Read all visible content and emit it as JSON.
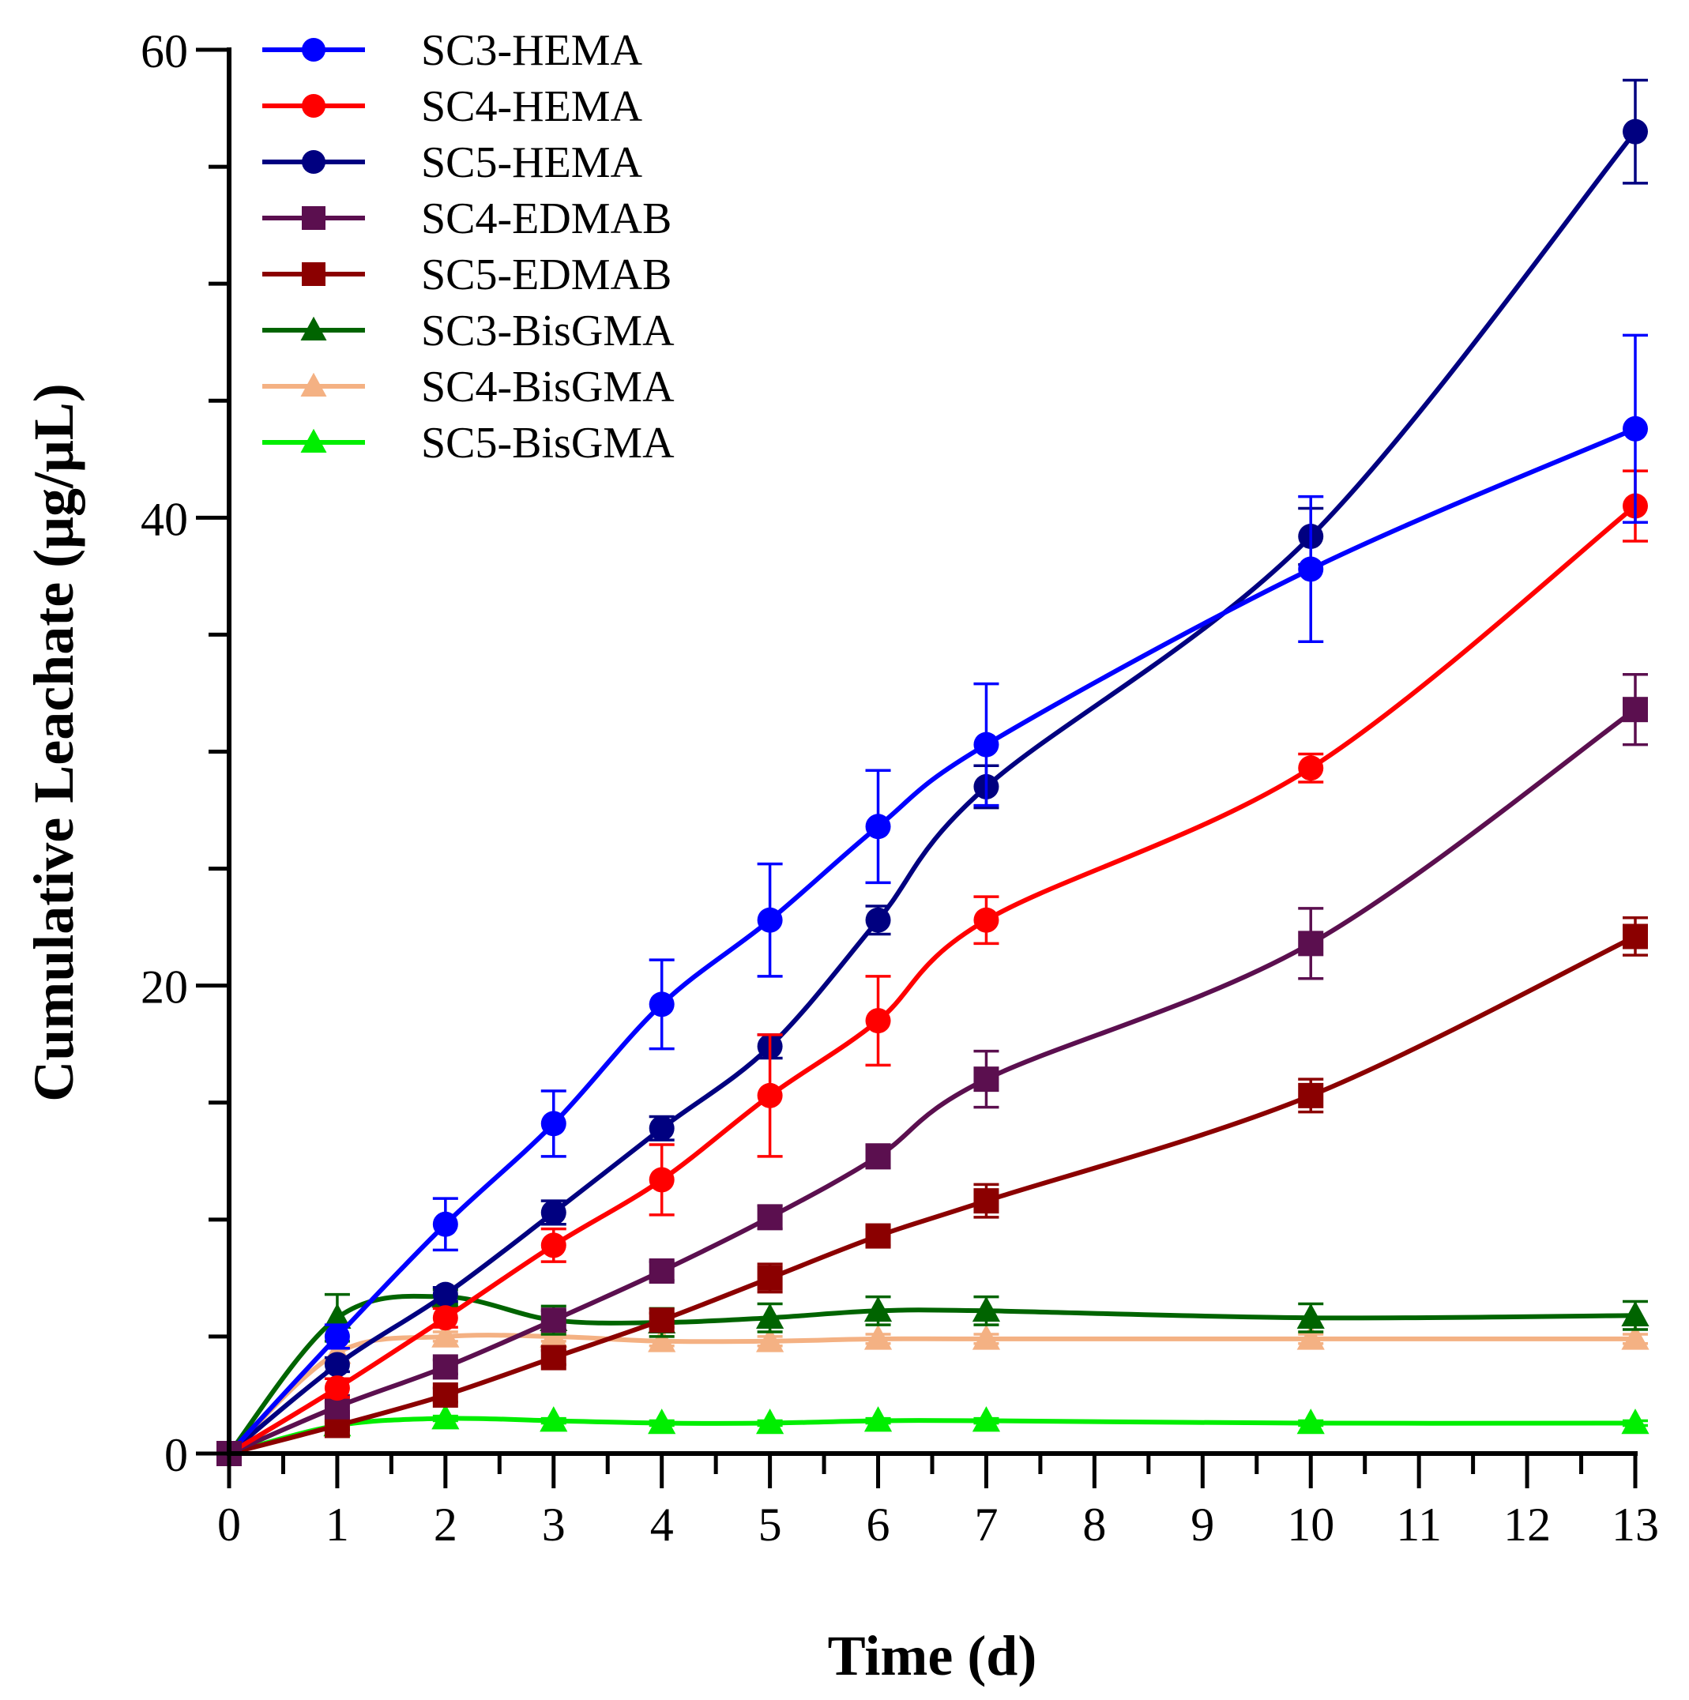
{
  "chart_data": {
    "type": "line",
    "title": "",
    "xlabel": "Time (d)",
    "ylabel": "Cumulative Leachate (μg/μL)",
    "xlim": [
      0,
      13
    ],
    "ylim": [
      0,
      60
    ],
    "x": [
      0,
      1,
      2,
      3,
      4,
      5,
      6,
      7,
      10,
      13
    ],
    "x_ticks": [
      0,
      1,
      2,
      3,
      4,
      5,
      6,
      7,
      8,
      9,
      10,
      11,
      12,
      13
    ],
    "y_ticks": [
      0,
      20,
      40,
      60
    ],
    "grid": false,
    "legend_position": "top-left",
    "series": [
      {
        "name": "SC3-HEMA",
        "color": "#0000ff",
        "marker": "circle",
        "values": [
          0,
          5.0,
          9.8,
          14.1,
          19.2,
          22.8,
          26.8,
          30.3,
          37.8,
          43.8
        ],
        "errors": [
          0,
          0.5,
          1.1,
          1.4,
          1.9,
          2.4,
          2.4,
          2.6,
          3.1,
          4.0
        ]
      },
      {
        "name": "SC4-HEMA",
        "color": "#ff0000",
        "marker": "circle",
        "values": [
          0,
          2.8,
          5.8,
          8.9,
          11.7,
          15.3,
          18.5,
          22.8,
          29.3,
          40.5
        ],
        "errors": [
          0,
          0.4,
          0.4,
          0.7,
          1.5,
          2.6,
          1.9,
          1.0,
          0.6,
          1.5
        ]
      },
      {
        "name": "SC5-HEMA",
        "color": "#000080",
        "marker": "circle",
        "values": [
          0,
          3.8,
          6.8,
          10.3,
          13.9,
          17.4,
          22.8,
          28.5,
          39.2,
          56.5
        ],
        "errors": [
          0,
          0.3,
          0.3,
          0.5,
          0.5,
          0.5,
          0.6,
          0.9,
          1.2,
          2.2
        ]
      },
      {
        "name": "SC4-EDMAB",
        "color": "#5b0f4f",
        "marker": "square",
        "values": [
          0,
          2.0,
          3.7,
          5.7,
          7.8,
          10.1,
          12.7,
          16.0,
          21.8,
          31.8
        ],
        "errors": [
          0,
          0.2,
          0.3,
          0.4,
          0.4,
          0.5,
          0.5,
          1.2,
          1.5,
          1.5
        ]
      },
      {
        "name": "SC5-EDMAB",
        "color": "#8b0000",
        "marker": "square",
        "values": [
          0,
          1.2,
          2.5,
          4.1,
          5.7,
          7.5,
          9.3,
          10.8,
          15.3,
          22.1
        ],
        "errors": [
          0,
          0.2,
          0.3,
          0.3,
          0.3,
          0.6,
          0.4,
          0.7,
          0.7,
          0.8
        ]
      },
      {
        "name": "SC3-BisGMA",
        "color": "#006400",
        "marker": "triangle",
        "values": [
          0,
          5.8,
          6.7,
          5.7,
          5.6,
          5.8,
          6.1,
          6.1,
          5.8,
          5.9
        ],
        "errors": [
          0,
          1.0,
          0.3,
          0.6,
          0.6,
          0.6,
          0.6,
          0.6,
          0.6,
          0.6
        ]
      },
      {
        "name": "SC4-BisGMA",
        "color": "#f4b183",
        "marker": "triangle",
        "values": [
          0,
          4.3,
          5.0,
          5.0,
          4.8,
          4.8,
          4.9,
          4.9,
          4.9,
          4.9
        ],
        "errors": [
          0,
          0.2,
          0.2,
          0.2,
          0.2,
          0.2,
          0.2,
          0.2,
          0.2,
          0.2
        ]
      },
      {
        "name": "SC5-BisGMA",
        "color": "#00ee00",
        "marker": "triangle",
        "values": [
          0,
          1.2,
          1.5,
          1.4,
          1.3,
          1.3,
          1.4,
          1.4,
          1.3,
          1.3
        ],
        "errors": [
          0,
          0.1,
          0.1,
          0.1,
          0.1,
          0.1,
          0.1,
          0.1,
          0.1,
          0.1
        ]
      }
    ]
  }
}
